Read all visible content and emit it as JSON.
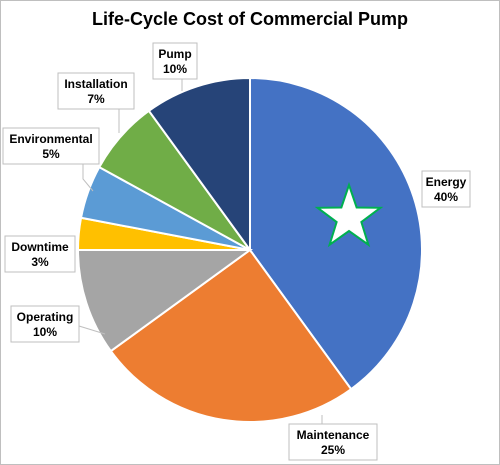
{
  "chart_data": {
    "type": "pie",
    "title": "Life-Cycle Cost of Commercial Pump",
    "slices": [
      {
        "label": "Energy",
        "value": 40,
        "pct_label": "40%",
        "color": "#4472C4"
      },
      {
        "label": "Maintenance",
        "value": 25,
        "pct_label": "25%",
        "color": "#ED7D31"
      },
      {
        "label": "Operating",
        "value": 10,
        "pct_label": "10%",
        "color": "#A5A5A5"
      },
      {
        "label": "Downtime",
        "value": 3,
        "pct_label": "3%",
        "color": "#FFC000"
      },
      {
        "label": "Environmental",
        "value": 5,
        "pct_label": "5%",
        "color": "#5B9BD5"
      },
      {
        "label": "Installation",
        "value": 7,
        "pct_label": "7%",
        "color": "#70AD47"
      },
      {
        "label": "Pump",
        "value": 10,
        "pct_label": "10%",
        "color": "#264478"
      }
    ],
    "start_angle_deg": 0,
    "direction": "clockwise",
    "legend": "none",
    "annotation": {
      "icon": "star-icon",
      "fill": "#ffffff",
      "stroke": "#00B050",
      "slice": "Energy"
    }
  }
}
